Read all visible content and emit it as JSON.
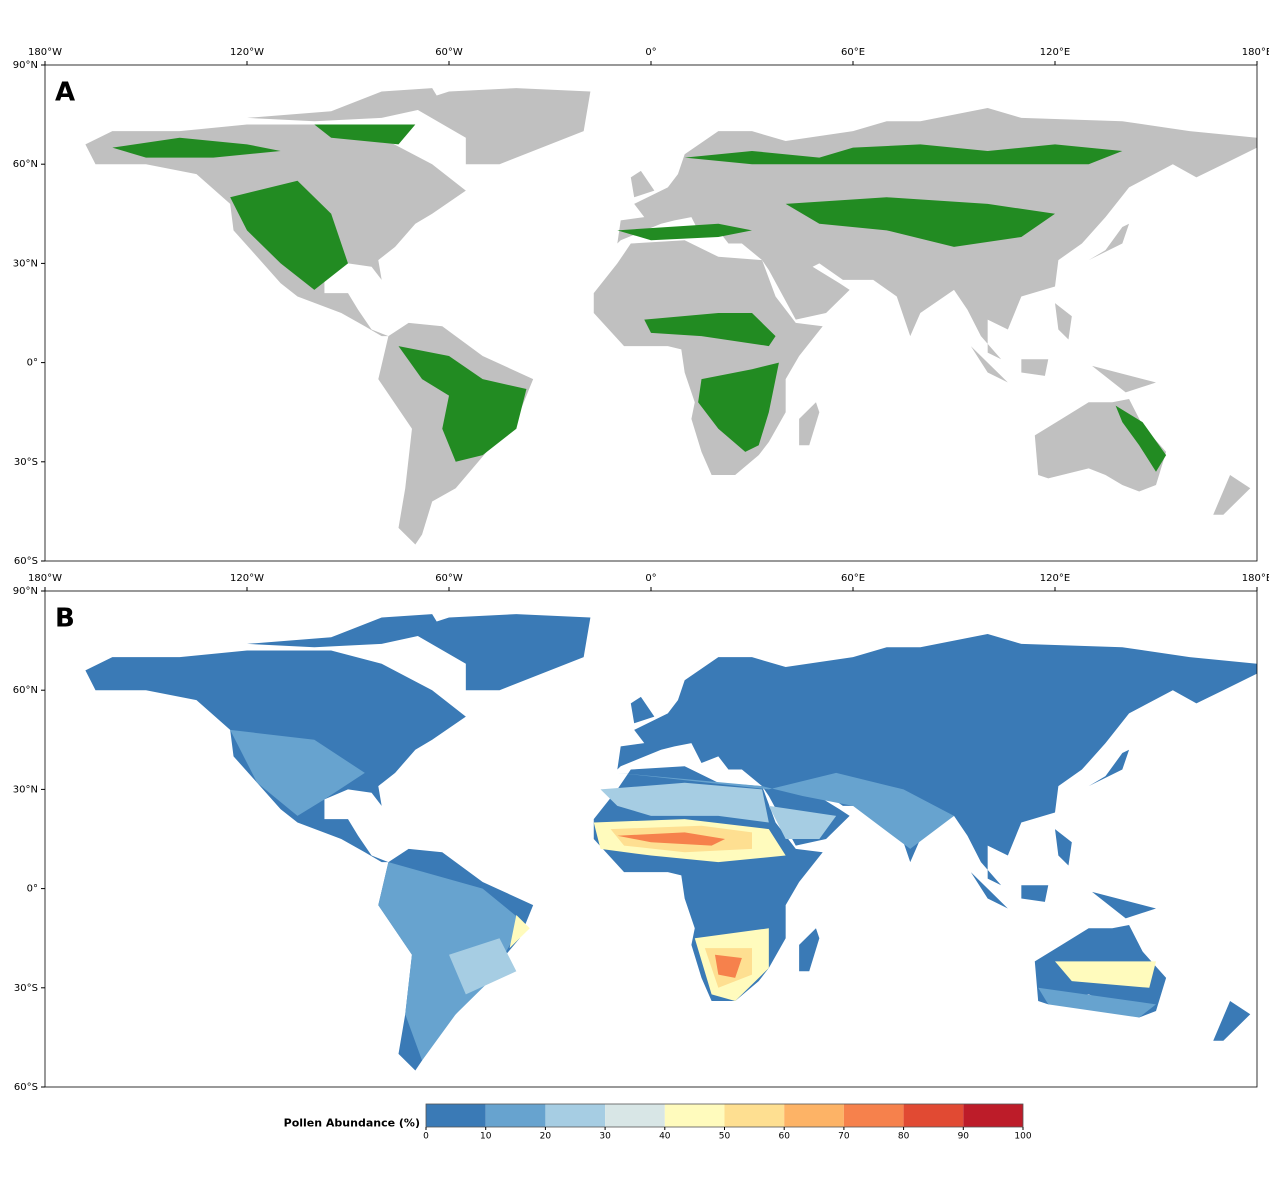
{
  "panels": [
    {
      "label": "A"
    },
    {
      "label": "B"
    }
  ],
  "lon_ticks": [
    {
      "value": -180,
      "label": "180°W"
    },
    {
      "value": -120,
      "label": "120°W"
    },
    {
      "value": -60,
      "label": "60°W"
    },
    {
      "value": 0,
      "label": "0°"
    },
    {
      "value": 60,
      "label": "60°E"
    },
    {
      "value": 120,
      "label": "120°E"
    },
    {
      "value": 180,
      "label": "180°E"
    }
  ],
  "lat_ticks": [
    {
      "value": 90,
      "label": "90°N"
    },
    {
      "value": 60,
      "label": "60°N"
    },
    {
      "value": 30,
      "label": "30°N"
    },
    {
      "value": 0,
      "label": "0°"
    },
    {
      "value": -30,
      "label": "30°S"
    },
    {
      "value": -60,
      "label": "60°S"
    }
  ],
  "colorbar": {
    "label": "Pollen Abundance (%)",
    "ticks": [
      0,
      10,
      20,
      30,
      40,
      50,
      60,
      70,
      80,
      90,
      100
    ],
    "colors": [
      "#3a7ab6",
      "#67a3cf",
      "#a6cde3",
      "#d8e6e6",
      "#fffbbd",
      "#fedf91",
      "#fdb366",
      "#f6814c",
      "#e14a33",
      "#bd1c29"
    ]
  }
}
